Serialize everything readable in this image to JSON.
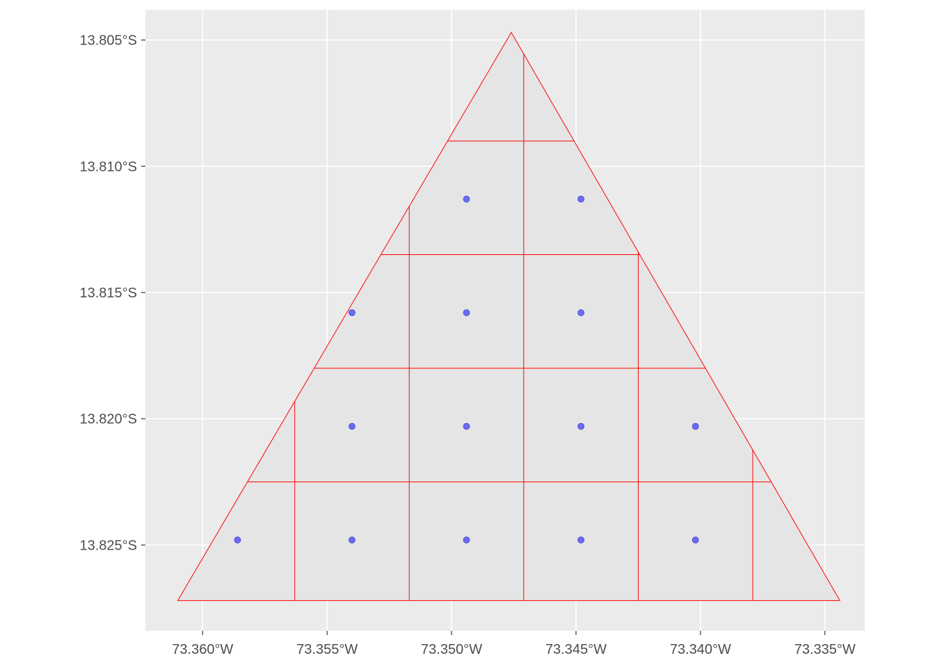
{
  "chart_data": {
    "type": "scatter",
    "title": "",
    "xlabel": "",
    "ylabel": "",
    "xlim": [
      -73.3623,
      -73.3334
    ],
    "ylim": [
      -13.8284,
      -13.8038
    ],
    "x_ticks": [
      {
        "value": -73.36,
        "label": "73.360°W"
      },
      {
        "value": -73.355,
        "label": "73.355°W"
      },
      {
        "value": -73.35,
        "label": "73.350°W"
      },
      {
        "value": -73.345,
        "label": "73.345°W"
      },
      {
        "value": -73.34,
        "label": "73.340°W"
      },
      {
        "value": -73.335,
        "label": "73.335°W"
      }
    ],
    "y_ticks": [
      {
        "value": -13.805,
        "label": "13.805°S"
      },
      {
        "value": -13.81,
        "label": "13.810°S"
      },
      {
        "value": -13.815,
        "label": "13.815°S"
      },
      {
        "value": -13.82,
        "label": "13.820°S"
      },
      {
        "value": -13.825,
        "label": "13.825°S"
      }
    ],
    "polygon": {
      "vertices": [
        [
          -73.3476,
          -13.8047
        ],
        [
          -73.361,
          -13.8272
        ],
        [
          -73.3344,
          -13.8272
        ]
      ],
      "fill": "#e5e5e5",
      "stroke": "#ff0000"
    },
    "grid_cells": {
      "x_breaks": [
        -73.3563,
        -73.3517,
        -73.3471,
        -73.3425,
        -73.3379
      ],
      "y_breaks": [
        -13.809,
        -13.8135,
        -13.818,
        -13.8225
      ],
      "stroke": "#ff0000"
    },
    "points": {
      "color": "#6b6bf5",
      "stroke": "#4444c8",
      "x": [
        -73.3494,
        -73.3448,
        -73.354,
        -73.3494,
        -73.3448,
        -73.354,
        -73.3494,
        -73.3448,
        -73.3402,
        -73.3586,
        -73.354,
        -73.3494,
        -73.3448,
        -73.3402
      ],
      "y": [
        -13.8113,
        -13.8113,
        -13.8158,
        -13.8158,
        -13.8158,
        -13.8203,
        -13.8203,
        -13.8203,
        -13.8203,
        -13.8248,
        -13.8248,
        -13.8248,
        -13.8248,
        -13.8248
      ]
    },
    "panel_background": "#ebebeb",
    "grid": true,
    "grid_color": "#ffffff",
    "legend": "none"
  }
}
